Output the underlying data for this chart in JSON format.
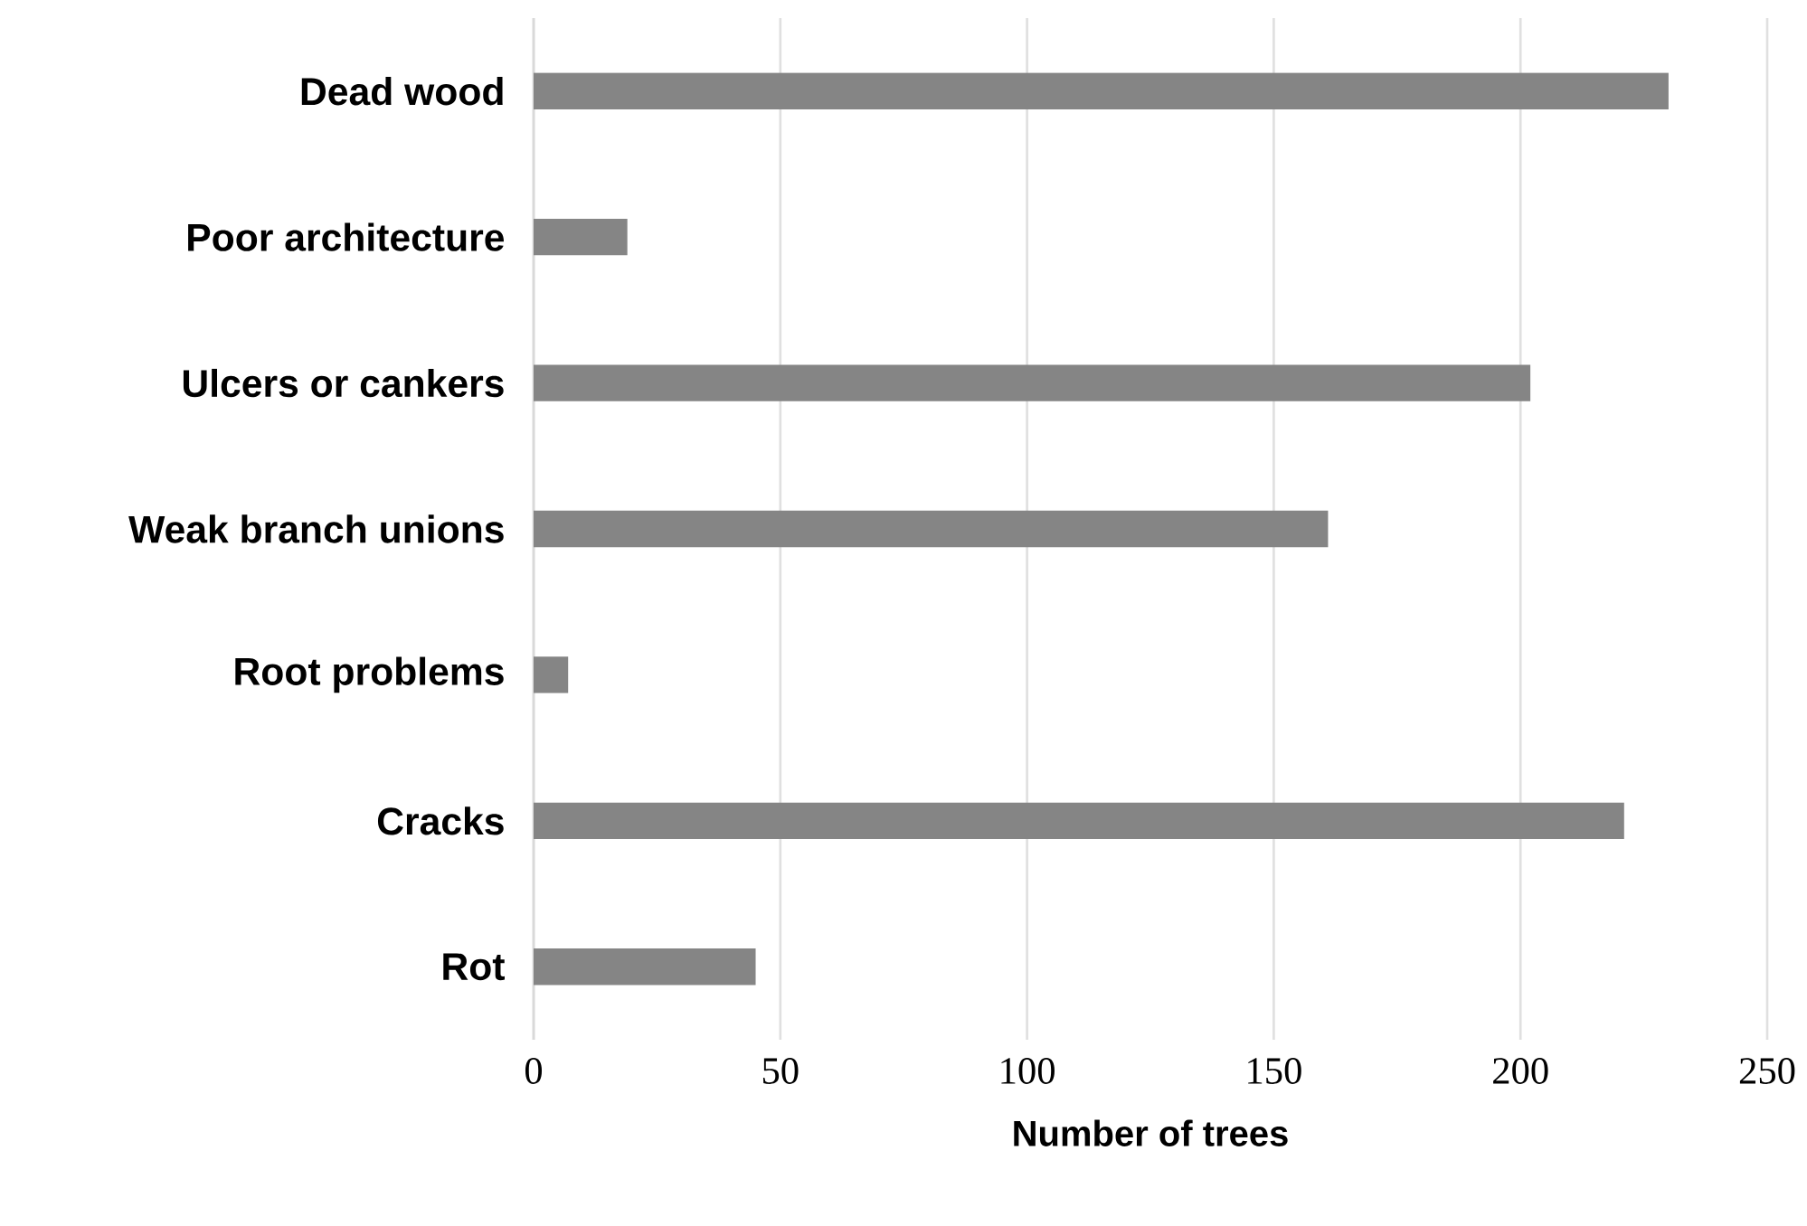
{
  "chart_data": {
    "type": "bar",
    "orientation": "horizontal",
    "xlabel": "Number of trees",
    "categories": [
      "Dead wood",
      "Poor architecture",
      "Ulcers or cankers",
      "Weak branch unions",
      "Root problems",
      "Cracks",
      "Rot"
    ],
    "values": [
      230,
      19,
      202,
      161,
      7,
      221,
      45
    ],
    "color": "#858585",
    "xlim": [
      0,
      250
    ],
    "xticks": [
      0,
      50,
      100,
      150,
      200,
      250
    ],
    "grid": "x"
  }
}
